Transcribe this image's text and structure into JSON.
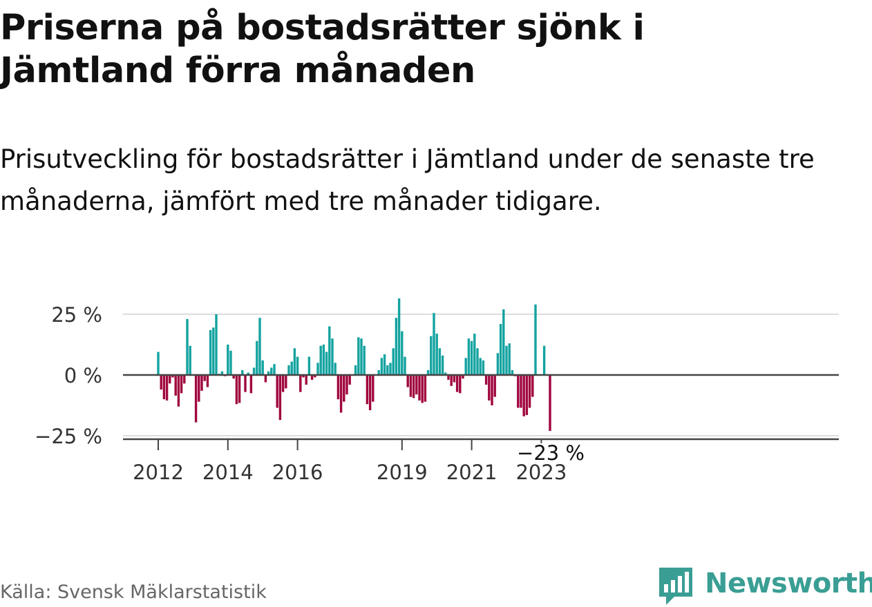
{
  "title": "Priserna på bostadsrätter sjönk i Jämtland förra månaden",
  "subtitle": "Prisutveckling för bostadsrätter i Jämtland under de senaste tre månaderna, jämfört med tre månader tidigare.",
  "source": "Källa: Svensk Mäklarstatistik",
  "brand": "Newsworthy",
  "colors": {
    "positive": "#14a3a0",
    "negative": "#a0063e",
    "brand": "#3a9e94"
  },
  "chart_data": {
    "type": "bar",
    "title": "Priserna på bostadsrätter sjönk i Jämtland förra månaden",
    "xlabel": "",
    "ylabel": "",
    "ylim": [
      -27,
      32
    ],
    "grid": true,
    "y_ticks": [
      {
        "value": 25,
        "label": "25 %"
      },
      {
        "value": 0,
        "label": "0 %"
      },
      {
        "value": -25,
        "label": "−25 %"
      }
    ],
    "x_ticks": [
      {
        "index": 0,
        "label": "2012"
      },
      {
        "index": 24,
        "label": "2014"
      },
      {
        "index": 48,
        "label": "2016"
      },
      {
        "index": 84,
        "label": "2019"
      },
      {
        "index": 108,
        "label": "2021"
      },
      {
        "index": 132,
        "label": "2023"
      }
    ],
    "end_label": "−23 %",
    "start": "2012-01",
    "frequency": "monthly",
    "values": [
      9.5,
      -6,
      -10,
      -10.5,
      -3.5,
      -1,
      -8.5,
      -13,
      -7.5,
      -3.5,
      23,
      12,
      0,
      -19.5,
      -11,
      -6.5,
      -2.5,
      -5,
      18.5,
      19.5,
      25,
      0.5,
      1.5,
      -0.5,
      12.5,
      10,
      -1.5,
      -12,
      -11.5,
      2,
      -7,
      1,
      -7.5,
      3,
      14,
      23.5,
      6,
      -3,
      1.5,
      3,
      4.5,
      -13.5,
      -18.5,
      -7,
      -5.5,
      4,
      5.5,
      11,
      7.5,
      -7,
      -1,
      -4,
      7.5,
      -2,
      -1,
      5,
      12,
      12.5,
      9.5,
      20,
      15,
      5,
      -10,
      -15.5,
      -11,
      -8,
      -4,
      0,
      4,
      15.5,
      15,
      12,
      -12,
      -14.5,
      -11,
      0,
      2,
      7,
      8.5,
      4,
      5,
      11,
      23.5,
      31.5,
      18,
      7.5,
      -5,
      -9,
      -9.5,
      -8,
      -10.5,
      -11.5,
      -11,
      2,
      16,
      25.5,
      17,
      11,
      8,
      1,
      -2,
      -4.5,
      -3,
      -7,
      -7.5,
      -1.5,
      7,
      15,
      14,
      17,
      11,
      7,
      6,
      -4,
      -10.5,
      -12.5,
      -9,
      9,
      21,
      27,
      12,
      13,
      2,
      -0.5,
      -13.5,
      -13.5,
      -17,
      -16.5,
      -13.5,
      -9,
      29,
      0,
      0,
      12,
      0,
      -23
    ]
  }
}
